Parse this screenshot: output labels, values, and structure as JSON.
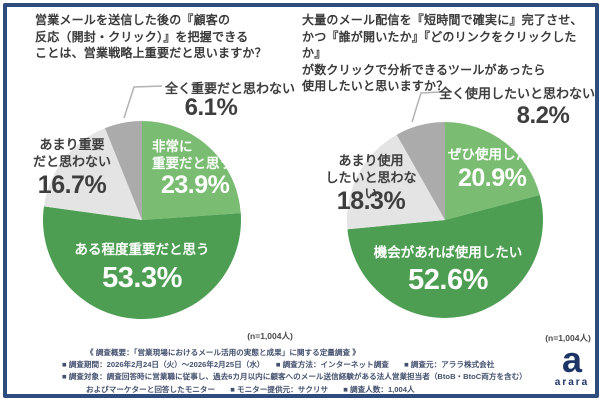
{
  "page": {
    "background": "#ffffff",
    "frame_color": "#2e4c7e"
  },
  "charts": [
    {
      "id": "importance",
      "title_lines": [
        "営業メールを送信した後の『顧客の",
        "反応（開封・クリック）』を把握できる",
        "ことは、営業戦略上重要だと思いますか？"
      ],
      "labels": {
        "very": {
          "line1": "非常に",
          "line2": "重要だと思う",
          "pct": "23.9%"
        },
        "somewhat": {
          "text": "ある程度重要だと思う",
          "pct": "53.3%"
        },
        "not_very": {
          "line1": "あまり重要",
          "line2": "だと思わない",
          "pct": "16.7%"
        },
        "not_at_all": {
          "text": "全く重要だと思わない",
          "pct": "6.1%"
        }
      },
      "n_label": "(n=1,004人)"
    },
    {
      "id": "tool-intent",
      "title_lines": [
        "大量のメール配信を『短時間で確実に』完了させ、",
        "かつ『誰が開いたか』『どのリンクをクリックしたか』",
        "が数クリックで分析できるツールがあったら",
        "使用したいと思いますか？"
      ],
      "labels": {
        "very": {
          "line1": "ぜひ使用したい",
          "line2": "",
          "pct": "20.9%"
        },
        "somewhat": {
          "text": "機会があれば使用したい",
          "pct": "52.6%"
        },
        "not_very": {
          "line1": "あまり使用",
          "line2": "したいと思わない",
          "pct": "18.3%"
        },
        "not_at_all": {
          "text": "全く使用したいと思わない",
          "pct": "8.2%"
        }
      },
      "n_label": "(n=1,004人)"
    }
  ],
  "chart_data": [
    {
      "type": "pie",
      "title": "営業メールを送信した後の『顧客の反応（開封・クリック）』を把握できることは、営業戦略上重要だと思いますか？",
      "labels": [
        "非常に重要だと思う",
        "ある程度重要だと思う",
        "あまり重要だと思わない",
        "全く重要だと思わない"
      ],
      "values": [
        23.9,
        53.3,
        16.7,
        6.1
      ],
      "unit": "%",
      "sample": "n=1,004人",
      "colors": [
        "#7abd72",
        "#4d9e52",
        "#e4e4e4",
        "#ababab"
      ],
      "start_angle": "top",
      "direction": "clockwise"
    },
    {
      "type": "pie",
      "title": "大量のメール配信を『短時間で確実に』完了させ、かつ『誰が開いたか』『どのリンクをクリックしたか』が数クリックで分析できるツールがあったら使用したいと思いますか？",
      "labels": [
        "ぜひ使用したい",
        "機会があれば使用したい",
        "あまり使用したいと思わない",
        "全く使用したいと思わない"
      ],
      "values": [
        20.9,
        52.6,
        18.3,
        8.2
      ],
      "unit": "%",
      "sample": "n=1,004人",
      "colors": [
        "#7abd72",
        "#4d9e52",
        "#e4e4e4",
        "#ababab"
      ],
      "start_angle": "top",
      "direction": "clockwise"
    }
  ],
  "footer": {
    "lines": [
      "《 調査概要：「営業現場におけるメール活用の実態と成果」に関する定量調査 》",
      "■ 調査期間：2026年2月24日（火）～2026年2月25日（水）　　■ 調査方法：インターネット調査　　■ 調査元：アララ株式会社",
      "■ 調査対象：調査回答時に営業職に従事し、過去6カ月以内に顧客へのメール送信経験がある法人営業担当者（BtoB・BtoC両方を含む）",
      "およびマーケターと回答したモニター　　■ モニター提供元：サクリサ　　■ 調査人数：1,004人"
    ]
  },
  "logo": {
    "glyph": "a",
    "wordmark": "arara",
    "color": "#1d3467"
  }
}
